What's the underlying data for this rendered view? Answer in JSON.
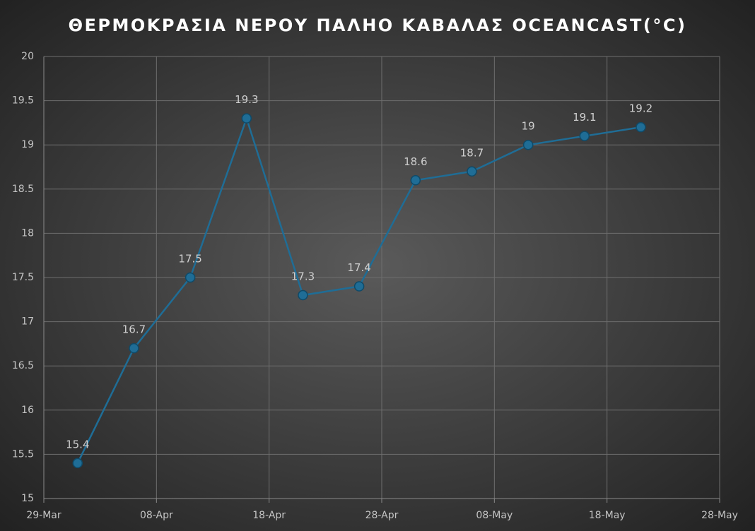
{
  "chart_data": {
    "type": "line",
    "title": "ΘΕΡΜΟΚΡΑΣΙΑ ΝΕΡΟΥ ΠΑΛΗΟ ΚΑΒΑΛΑΣ OCEANCAST(°C)",
    "x": [
      "01-Apr",
      "06-Apr",
      "11-Apr",
      "16-Apr",
      "21-Apr",
      "26-Apr",
      "01-May",
      "06-May",
      "11-May",
      "16-May",
      "21-May"
    ],
    "series": [
      {
        "color": "#1f6d96",
        "values": [
          15.4,
          16.7,
          17.5,
          19.3,
          17.3,
          17.4,
          18.6,
          18.7,
          19,
          19.1,
          19.2
        ]
      }
    ],
    "xlim": [
      "29-Mar",
      "28-May"
    ],
    "xticks": [
      "29-Mar",
      "08-Apr",
      "18-Apr",
      "28-Apr",
      "08-May",
      "18-May",
      "28-May"
    ],
    "ylim": [
      15,
      20
    ],
    "yticks": [
      15,
      15.5,
      16,
      16.5,
      17,
      17.5,
      18,
      18.5,
      19,
      19.5,
      20
    ],
    "grid": true
  }
}
